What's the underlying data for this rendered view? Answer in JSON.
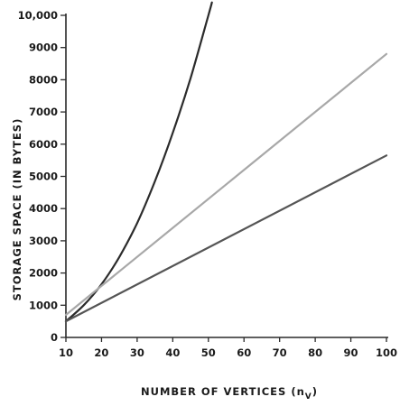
{
  "chart_data": {
    "type": "line",
    "title": "",
    "xlabel": "NUMBER OF VERTICES (n",
    "xlabel_sub": "V",
    "xlabel_close": ")",
    "ylabel": "STORAGE SPACE (IN BYTES)",
    "xlim": [
      10,
      100
    ],
    "ylim": [
      0,
      10000
    ],
    "x_ticks": [
      10,
      20,
      30,
      40,
      50,
      60,
      70,
      80,
      90,
      100
    ],
    "x_tick_labels": [
      "10",
      "20",
      "30",
      "40",
      "50",
      "60",
      "70",
      "80",
      "90",
      "100"
    ],
    "y_ticks": [
      0,
      1000,
      2000,
      3000,
      4000,
      5000,
      6000,
      7000,
      8000,
      9000,
      10000
    ],
    "y_tick_labels": [
      "0",
      "1000",
      "2000",
      "3000",
      "4000",
      "5000",
      "6000",
      "7000",
      "8000",
      "9000",
      "10,000"
    ],
    "grid": false,
    "legend": "none",
    "series": [
      {
        "color": "#2b2b2b",
        "x": [
          10,
          15,
          20,
          25,
          30,
          35,
          40,
          45,
          50,
          51
        ],
        "y": [
          500,
          1000,
          1650,
          2500,
          3550,
          4850,
          6350,
          8050,
          10000,
          10400
        ]
      },
      {
        "color": "#a8a8a8",
        "x": [
          10,
          100
        ],
        "y": [
          700,
          8800
        ]
      },
      {
        "color": "#555555",
        "x": [
          10,
          100
        ],
        "y": [
          500,
          5650
        ]
      }
    ]
  }
}
